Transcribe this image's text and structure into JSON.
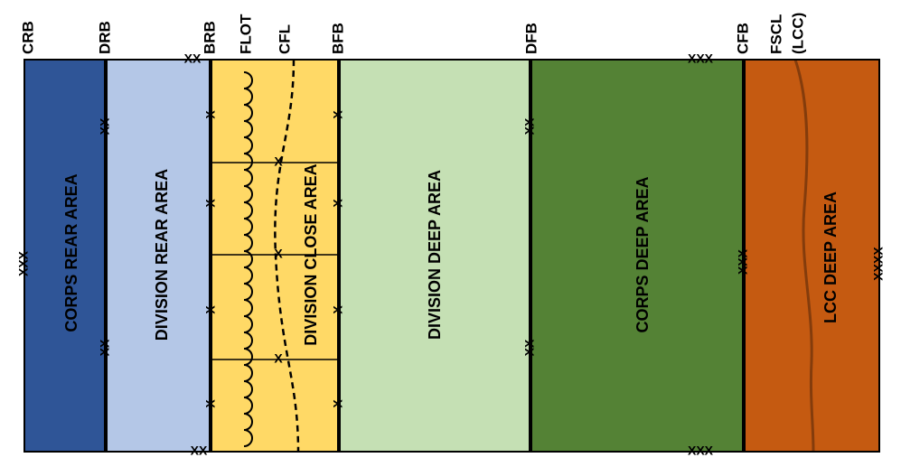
{
  "boundaries": [
    "CRB",
    "DRB",
    "BRB",
    "FLOT",
    "CFL",
    "BFB",
    "DFB",
    "CFB",
    "FSCL",
    "(LCC)"
  ],
  "areas": [
    "CORPS REAR AREA",
    "DIVISION REAR AREA",
    "DIVISION CLOSE AREA",
    "DIVISION DEEP AREA",
    "CORPS DEEP AREA",
    "LCC DEEP AREA"
  ],
  "echelon_symbols": [
    "XXX",
    "XX",
    "XX",
    "XX",
    "X",
    "X",
    "X",
    "X",
    "XX",
    "X",
    "X",
    "X",
    "X",
    "X",
    "X",
    "X",
    "XX",
    "XX",
    "XXX",
    "XXX",
    "XXX",
    "XXXX"
  ]
}
